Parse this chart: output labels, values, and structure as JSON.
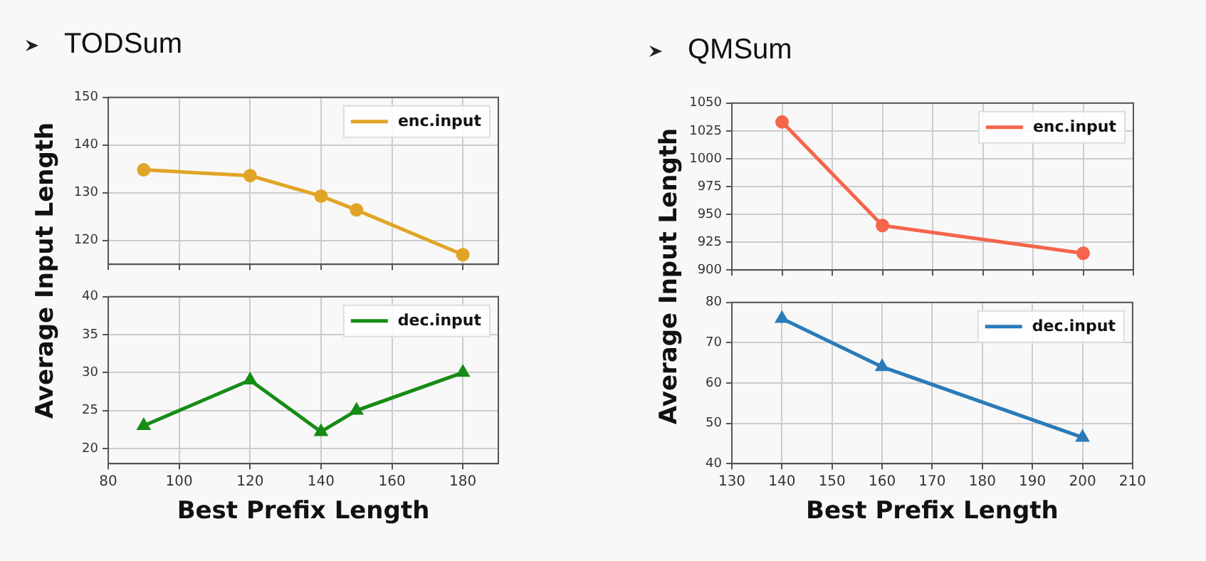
{
  "chart_data": [
    {
      "type": "line",
      "title": "TODSum",
      "ylabel": "Average Input Length",
      "x": [
        90,
        120,
        140,
        150,
        180
      ],
      "xlim": [
        80,
        190
      ],
      "xticks": [
        {
          "value": 80,
          "label": null
        },
        {
          "value": 100,
          "label": null
        },
        {
          "value": 120,
          "label": null
        },
        {
          "value": 140,
          "label": null
        },
        {
          "value": 160,
          "label": null
        },
        {
          "value": 180,
          "label": null
        }
      ],
      "ylim": [
        115,
        150
      ],
      "yticks": [
        120,
        130,
        140,
        150
      ],
      "tick_labels": "y",
      "grid": true,
      "legend": "top right",
      "marker": "circle",
      "series": [
        {
          "name": "enc.input",
          "color": "#e0a526",
          "values": [
            134.8,
            133.6,
            129.3,
            126.4,
            117.0
          ]
        }
      ]
    },
    {
      "type": "line",
      "xlabel": "Best Prefix Length",
      "x": [
        90,
        120,
        140,
        150,
        180
      ],
      "xlim": [
        80,
        190
      ],
      "xticks": [
        80,
        100,
        120,
        140,
        160,
        180
      ],
      "ylim": [
        18,
        40
      ],
      "yticks": [
        20,
        25,
        30,
        35,
        40
      ],
      "grid": true,
      "legend": "top right",
      "marker": "triangle",
      "series": [
        {
          "name": "dec.input",
          "color": "#168c16",
          "values": [
            23,
            29,
            22.2,
            25,
            30
          ]
        }
      ]
    },
    {
      "type": "line",
      "title": "QMSum",
      "ylabel": "Average Input Length",
      "x": [
        140,
        160,
        200
      ],
      "xlim": [
        130,
        210
      ],
      "xticks": [
        {
          "value": 130,
          "label": null
        },
        {
          "value": 140,
          "label": null
        },
        {
          "value": 150,
          "label": null
        },
        {
          "value": 160,
          "label": null
        },
        {
          "value": 170,
          "label": null
        },
        {
          "value": 180,
          "label": null
        },
        {
          "value": 190,
          "label": null
        },
        {
          "value": 200,
          "label": null
        },
        {
          "value": 210,
          "label": null
        }
      ],
      "ylim": [
        900,
        1050
      ],
      "yticks": [
        900,
        925,
        950,
        975,
        1000,
        1025,
        1050
      ],
      "tick_labels": "y",
      "grid": true,
      "legend": "top right",
      "marker": "circle",
      "series": [
        {
          "name": "enc.input",
          "color": "#f4654c",
          "values": [
            1033,
            940,
            915
          ]
        }
      ]
    },
    {
      "type": "line",
      "xlabel": "Best Prefix Length",
      "x": [
        140,
        160,
        200
      ],
      "xlim": [
        130,
        210
      ],
      "xticks": [
        130,
        140,
        150,
        160,
        170,
        180,
        190,
        200,
        210
      ],
      "ylim": [
        40,
        80
      ],
      "yticks": [
        40,
        50,
        60,
        70,
        80
      ],
      "grid": true,
      "legend": "top right",
      "marker": "triangle",
      "series": [
        {
          "name": "dec.input",
          "color": "#2a7bb8",
          "values": [
            76,
            64,
            46.5
          ]
        }
      ]
    }
  ]
}
